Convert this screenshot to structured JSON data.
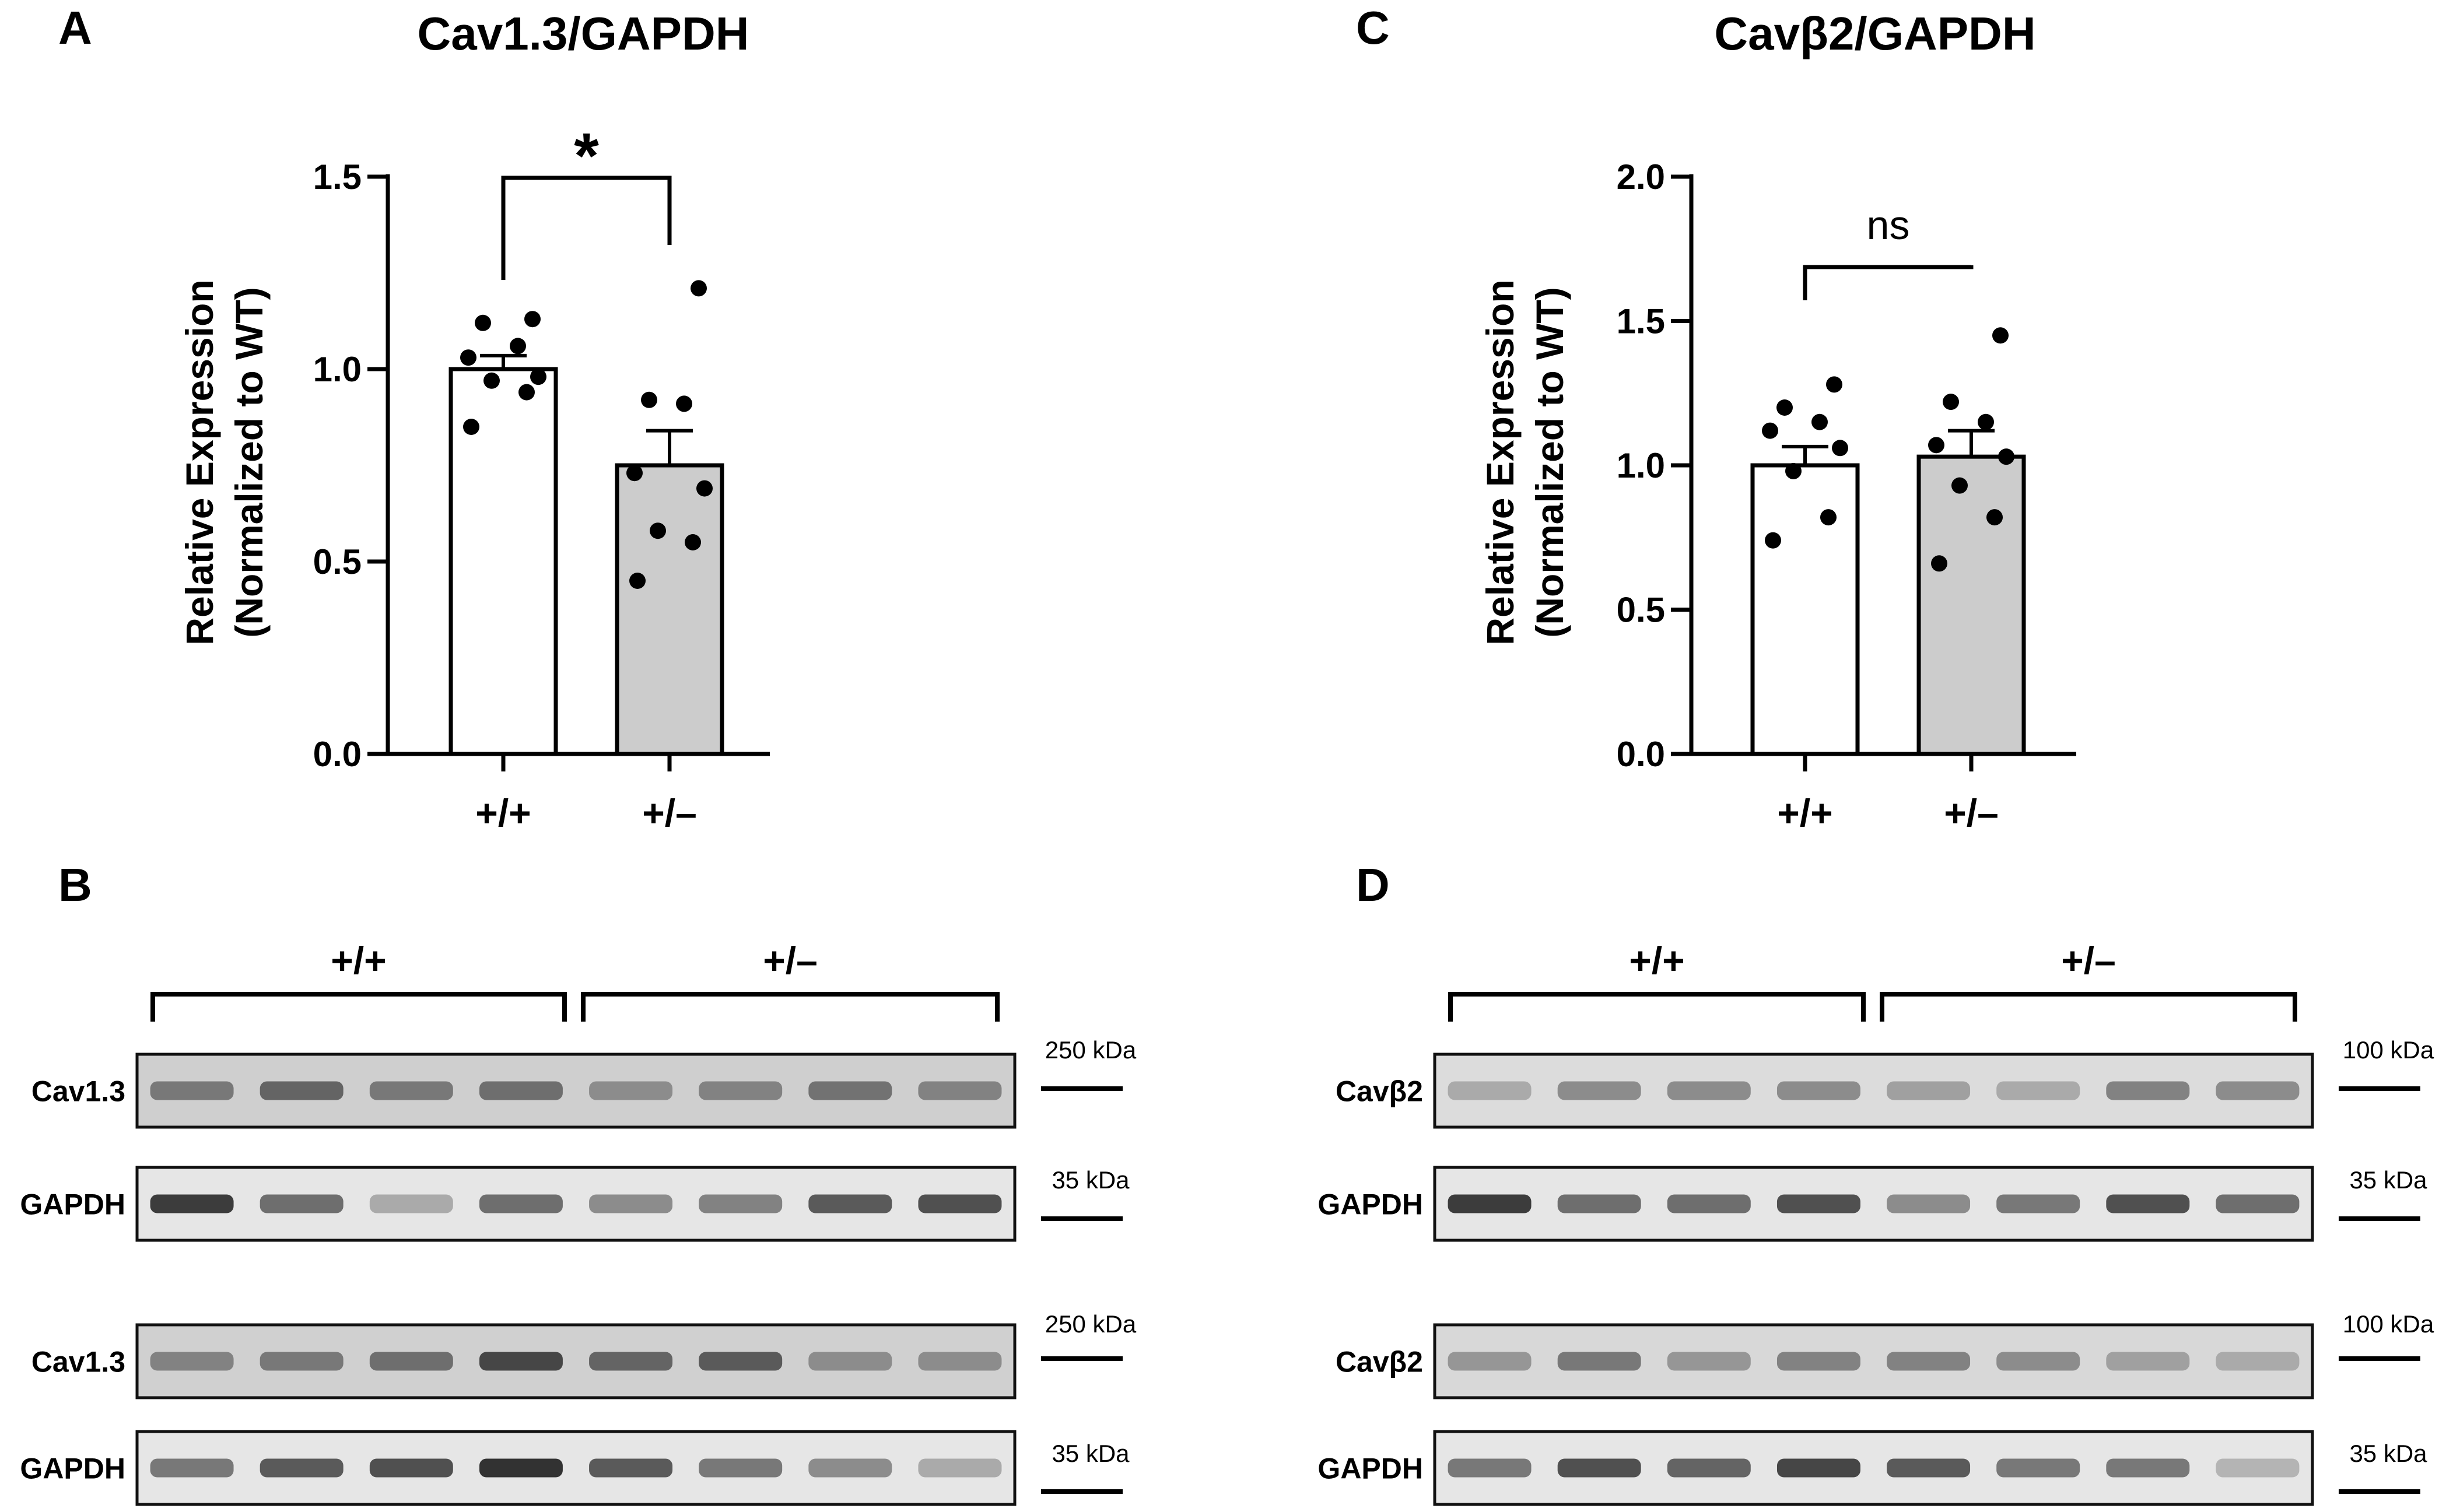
{
  "panels": {
    "A": {
      "letter": "A"
    },
    "B": {
      "letter": "B"
    },
    "C": {
      "letter": "C"
    },
    "D": {
      "letter": "D"
    }
  },
  "chart_data": [
    {
      "panel": "A",
      "type": "bar",
      "title": "Cav1.3/GAPDH",
      "ylabel_line1": "Relative Expression",
      "ylabel_line2": "(Normalized to WT)",
      "ylim": [
        0,
        1.5
      ],
      "yticks": [
        "0.0",
        "0.5",
        "1.0",
        "1.5"
      ],
      "ytick_values": [
        0,
        0.5,
        1.0,
        1.5
      ],
      "categories": [
        "+/+",
        "+/–"
      ],
      "values": [
        1.0,
        0.75
      ],
      "sem": [
        0.035,
        0.09
      ],
      "bar_colors": [
        "#ffffff",
        "#cccccc"
      ],
      "points": [
        [
          0.85,
          0.94,
          0.97,
          0.98,
          1.03,
          1.06,
          1.12,
          1.13
        ],
        [
          0.45,
          0.55,
          0.58,
          0.69,
          0.73,
          0.91,
          0.92,
          1.21
        ]
      ],
      "comparison": {
        "from": 0,
        "to": 1,
        "label": "*"
      },
      "grid": false
    },
    {
      "panel": "C",
      "type": "bar",
      "title": "Cavβ2/GAPDH",
      "ylabel_line1": "Relative Expression",
      "ylabel_line2": "(Normalized to WT)",
      "ylim": [
        0,
        2.0
      ],
      "yticks": [
        "0.0",
        "0.5",
        "1.0",
        "1.5",
        "2.0"
      ],
      "ytick_values": [
        0,
        0.5,
        1.0,
        1.5,
        2.0
      ],
      "categories": [
        "+/+",
        "+/–"
      ],
      "values": [
        1.0,
        1.03
      ],
      "sem": [
        0.065,
        0.09
      ],
      "bar_colors": [
        "#ffffff",
        "#cccccc"
      ],
      "points": [
        [
          0.74,
          0.82,
          0.98,
          1.06,
          1.12,
          1.15,
          1.2,
          1.28
        ],
        [
          0.66,
          0.82,
          0.93,
          1.03,
          1.07,
          1.15,
          1.22,
          1.45
        ]
      ],
      "comparison": {
        "from": 0,
        "to": 1,
        "label": "ns"
      },
      "grid": false
    }
  ],
  "blots": [
    {
      "panel": "B",
      "groups": [
        "+/+",
        "+/–"
      ],
      "rows": [
        {
          "label": "Cav1.3",
          "marker": "250 kDa",
          "intensity": [
            0.55,
            0.65,
            0.55,
            0.6,
            0.45,
            0.5,
            0.58,
            0.5
          ],
          "tone": "#cfcfcf"
        },
        {
          "label": "GAPDH",
          "marker": "35 kDa",
          "intensity": [
            0.85,
            0.6,
            0.3,
            0.6,
            0.45,
            0.5,
            0.7,
            0.75
          ],
          "tone": "#e6e6e6"
        },
        {
          "label": "Cav1.3",
          "marker": "250 kDa",
          "intensity": [
            0.5,
            0.55,
            0.6,
            0.8,
            0.65,
            0.7,
            0.45,
            0.45
          ],
          "tone": "#d0d0d0"
        },
        {
          "label": "GAPDH",
          "marker": "35 kDa",
          "intensity": [
            0.55,
            0.7,
            0.75,
            0.9,
            0.7,
            0.55,
            0.45,
            0.3
          ],
          "tone": "#e6e6e6"
        }
      ]
    },
    {
      "panel": "D",
      "groups": [
        "+/+",
        "+/–"
      ],
      "rows": [
        {
          "label": "Cavβ2",
          "marker": "100 kDa",
          "intensity": [
            0.3,
            0.45,
            0.45,
            0.45,
            0.35,
            0.3,
            0.5,
            0.45
          ],
          "tone": "#dcdcdc"
        },
        {
          "label": "GAPDH",
          "marker": "35 kDa",
          "intensity": [
            0.85,
            0.6,
            0.6,
            0.75,
            0.45,
            0.55,
            0.75,
            0.6
          ],
          "tone": "#e6e6e6"
        },
        {
          "label": "Cavβ2",
          "marker": "100 kDa",
          "intensity": [
            0.4,
            0.55,
            0.4,
            0.5,
            0.5,
            0.45,
            0.35,
            0.3
          ],
          "tone": "#d8d8d8"
        },
        {
          "label": "GAPDH",
          "marker": "35 kDa",
          "intensity": [
            0.55,
            0.75,
            0.65,
            0.8,
            0.7,
            0.55,
            0.55,
            0.25
          ],
          "tone": "#e6e6e6"
        }
      ]
    }
  ]
}
